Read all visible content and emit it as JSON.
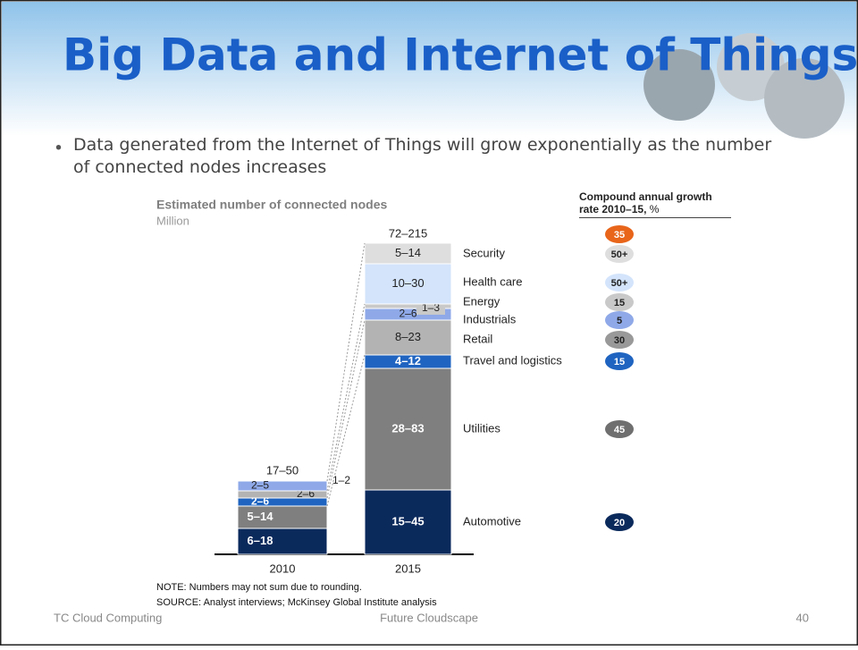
{
  "slide": {
    "title": "Big Data and Internet of Things",
    "bullet": "Data generated from the Internet of Things will grow exponentially as the number of connected nodes increases",
    "footer": {
      "left": "TC Cloud Computing",
      "center": "Future Cloudscape",
      "page": "40"
    }
  },
  "chart": {
    "title": "Estimated number of connected nodes",
    "unit": "Million",
    "growth_header": "Compound annual growth rate 2010–15,",
    "growth_unit": "%",
    "bars": [
      {
        "label": "2010",
        "total": "17–50",
        "callout": "1–2",
        "segments": [
          {
            "name": "Automotive",
            "label": "6–18"
          },
          {
            "name": "Utilities",
            "label": "5–14"
          },
          {
            "name": "Travel and logistics",
            "label": "2–6"
          },
          {
            "name": "Retail",
            "label": "2–6"
          },
          {
            "name": "Industrials",
            "label": "2–5"
          }
        ]
      },
      {
        "label": "2015",
        "total": "72–215",
        "total_growth": "35",
        "segments": [
          {
            "name": "Automotive",
            "label": "15–45",
            "growth": "20"
          },
          {
            "name": "Utilities",
            "label": "28–83",
            "growth": "45"
          },
          {
            "name": "Travel and logistics",
            "label": "4–12",
            "growth": "15"
          },
          {
            "name": "Retail",
            "label": "8–23",
            "growth": "30"
          },
          {
            "name": "Industrials",
            "label": "2–6",
            "growth": "5"
          },
          {
            "name": "Energy",
            "label": "1–3",
            "growth": "15"
          },
          {
            "name": "Health care",
            "label": "10–30",
            "growth": "50+"
          },
          {
            "name": "Security",
            "label": "5–14",
            "growth": "50+"
          }
        ]
      }
    ],
    "note": "NOTE: Numbers may not sum due to rounding.",
    "source": "SOURCE: Analyst interviews; McKinsey Global Institute analysis"
  }
}
